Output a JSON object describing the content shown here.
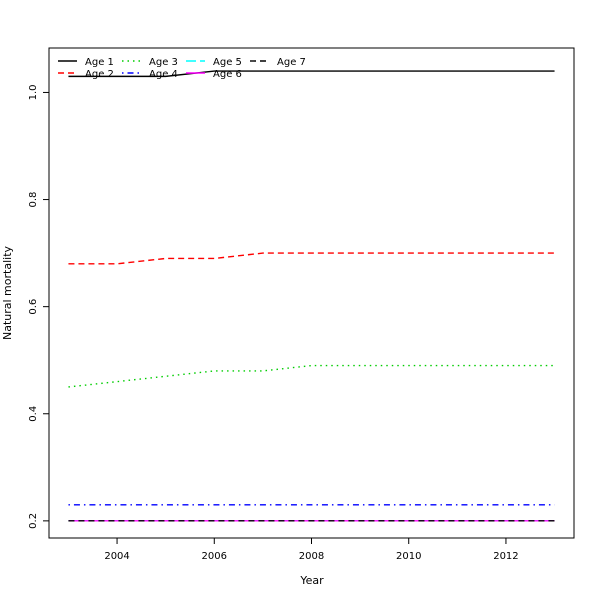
{
  "chart_data": {
    "type": "line",
    "xlabel": "Year",
    "ylabel": "Natural mortality",
    "x": [
      2003,
      2004,
      2005,
      2006,
      2007,
      2008,
      2009,
      2010,
      2011,
      2012,
      2013
    ],
    "xlim": [
      2002.6,
      2013.4
    ],
    "ylim": [
      0.168,
      1.083
    ],
    "x_ticks": [
      2004,
      2006,
      2008,
      2010,
      2012
    ],
    "y_ticks": [
      0.2,
      0.4,
      0.6,
      0.8,
      1.0
    ],
    "y_tick_labels": [
      "0.2",
      "0.4",
      "0.6",
      "0.8",
      "1.0"
    ],
    "grid": false,
    "legend_position": "top-left",
    "series": [
      {
        "name": "Age 1",
        "color": "#000000",
        "dash": "solid",
        "values": [
          1.03,
          1.03,
          1.03,
          1.04,
          1.04,
          1.04,
          1.04,
          1.04,
          1.04,
          1.04,
          1.04
        ]
      },
      {
        "name": "Age 2",
        "color": "#ff0000",
        "dash": "dashed",
        "values": [
          0.68,
          0.68,
          0.69,
          0.69,
          0.7,
          0.7,
          0.7,
          0.7,
          0.7,
          0.7,
          0.7
        ]
      },
      {
        "name": "Age 3",
        "color": "#00cd00",
        "dash": "dotted",
        "values": [
          0.45,
          0.46,
          0.47,
          0.48,
          0.48,
          0.49,
          0.49,
          0.49,
          0.49,
          0.49,
          0.49
        ]
      },
      {
        "name": "Age 4",
        "color": "#0000ff",
        "dash": "dotdash",
        "values": [
          0.23,
          0.23,
          0.23,
          0.23,
          0.23,
          0.23,
          0.23,
          0.23,
          0.23,
          0.23,
          0.23
        ]
      },
      {
        "name": "Age 5",
        "color": "#00ffff",
        "dash": "longdash",
        "values": [
          0.2,
          0.2,
          0.2,
          0.2,
          0.2,
          0.2,
          0.2,
          0.2,
          0.2,
          0.2,
          0.2
        ]
      },
      {
        "name": "Age 6",
        "color": "#ff00ff",
        "dash": "solid",
        "values": [
          0.2,
          0.2,
          0.2,
          0.2,
          0.2,
          0.2,
          0.2,
          0.2,
          0.2,
          0.2,
          0.2
        ]
      },
      {
        "name": "Age 7",
        "color": "#000000",
        "dash": "dashed",
        "values": [
          0.2,
          0.2,
          0.2,
          0.2,
          0.2,
          0.2,
          0.2,
          0.2,
          0.2,
          0.2,
          0.2
        ]
      }
    ]
  }
}
